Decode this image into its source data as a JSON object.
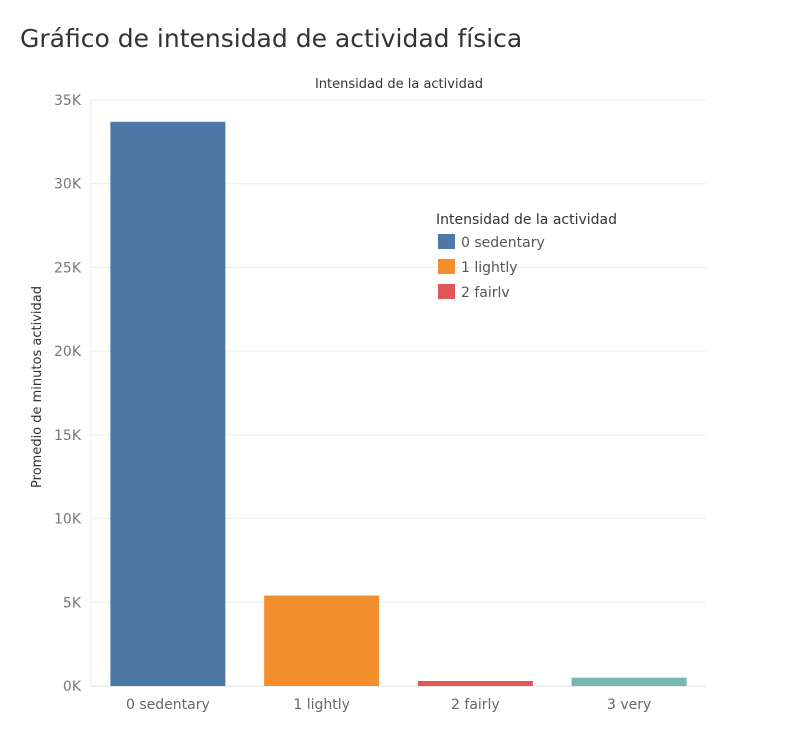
{
  "title": "Gráfico de intensidad de actividad física",
  "colors": {
    "sedentary": "#4e79a7",
    "lightly": "#f28e2b",
    "fairly": "#e15759",
    "very": "#76b7b2",
    "grid": "#ececec"
  },
  "chart_data": {
    "type": "bar",
    "title": "Intensidad de la actividad",
    "ylabel": "Promedio de minutos actividad",
    "xlabel": "",
    "categories": [
      "0 sedentary",
      "1 lightly",
      "2 fairly",
      "3 very"
    ],
    "values": [
      33700,
      5400,
      300,
      500
    ],
    "ylim": [
      0,
      35000
    ],
    "yticks": [
      0,
      5000,
      10000,
      15000,
      20000,
      25000,
      30000,
      35000
    ],
    "ytick_labels": [
      "0K",
      "5K",
      "10K",
      "15K",
      "20K",
      "25K",
      "30K",
      "35K"
    ],
    "grid": true,
    "legend": {
      "title": "Intensidad de la actividad",
      "position": "top-right",
      "entries": [
        "0 sedentary",
        "1 lightly",
        "2 fairlv"
      ]
    }
  }
}
